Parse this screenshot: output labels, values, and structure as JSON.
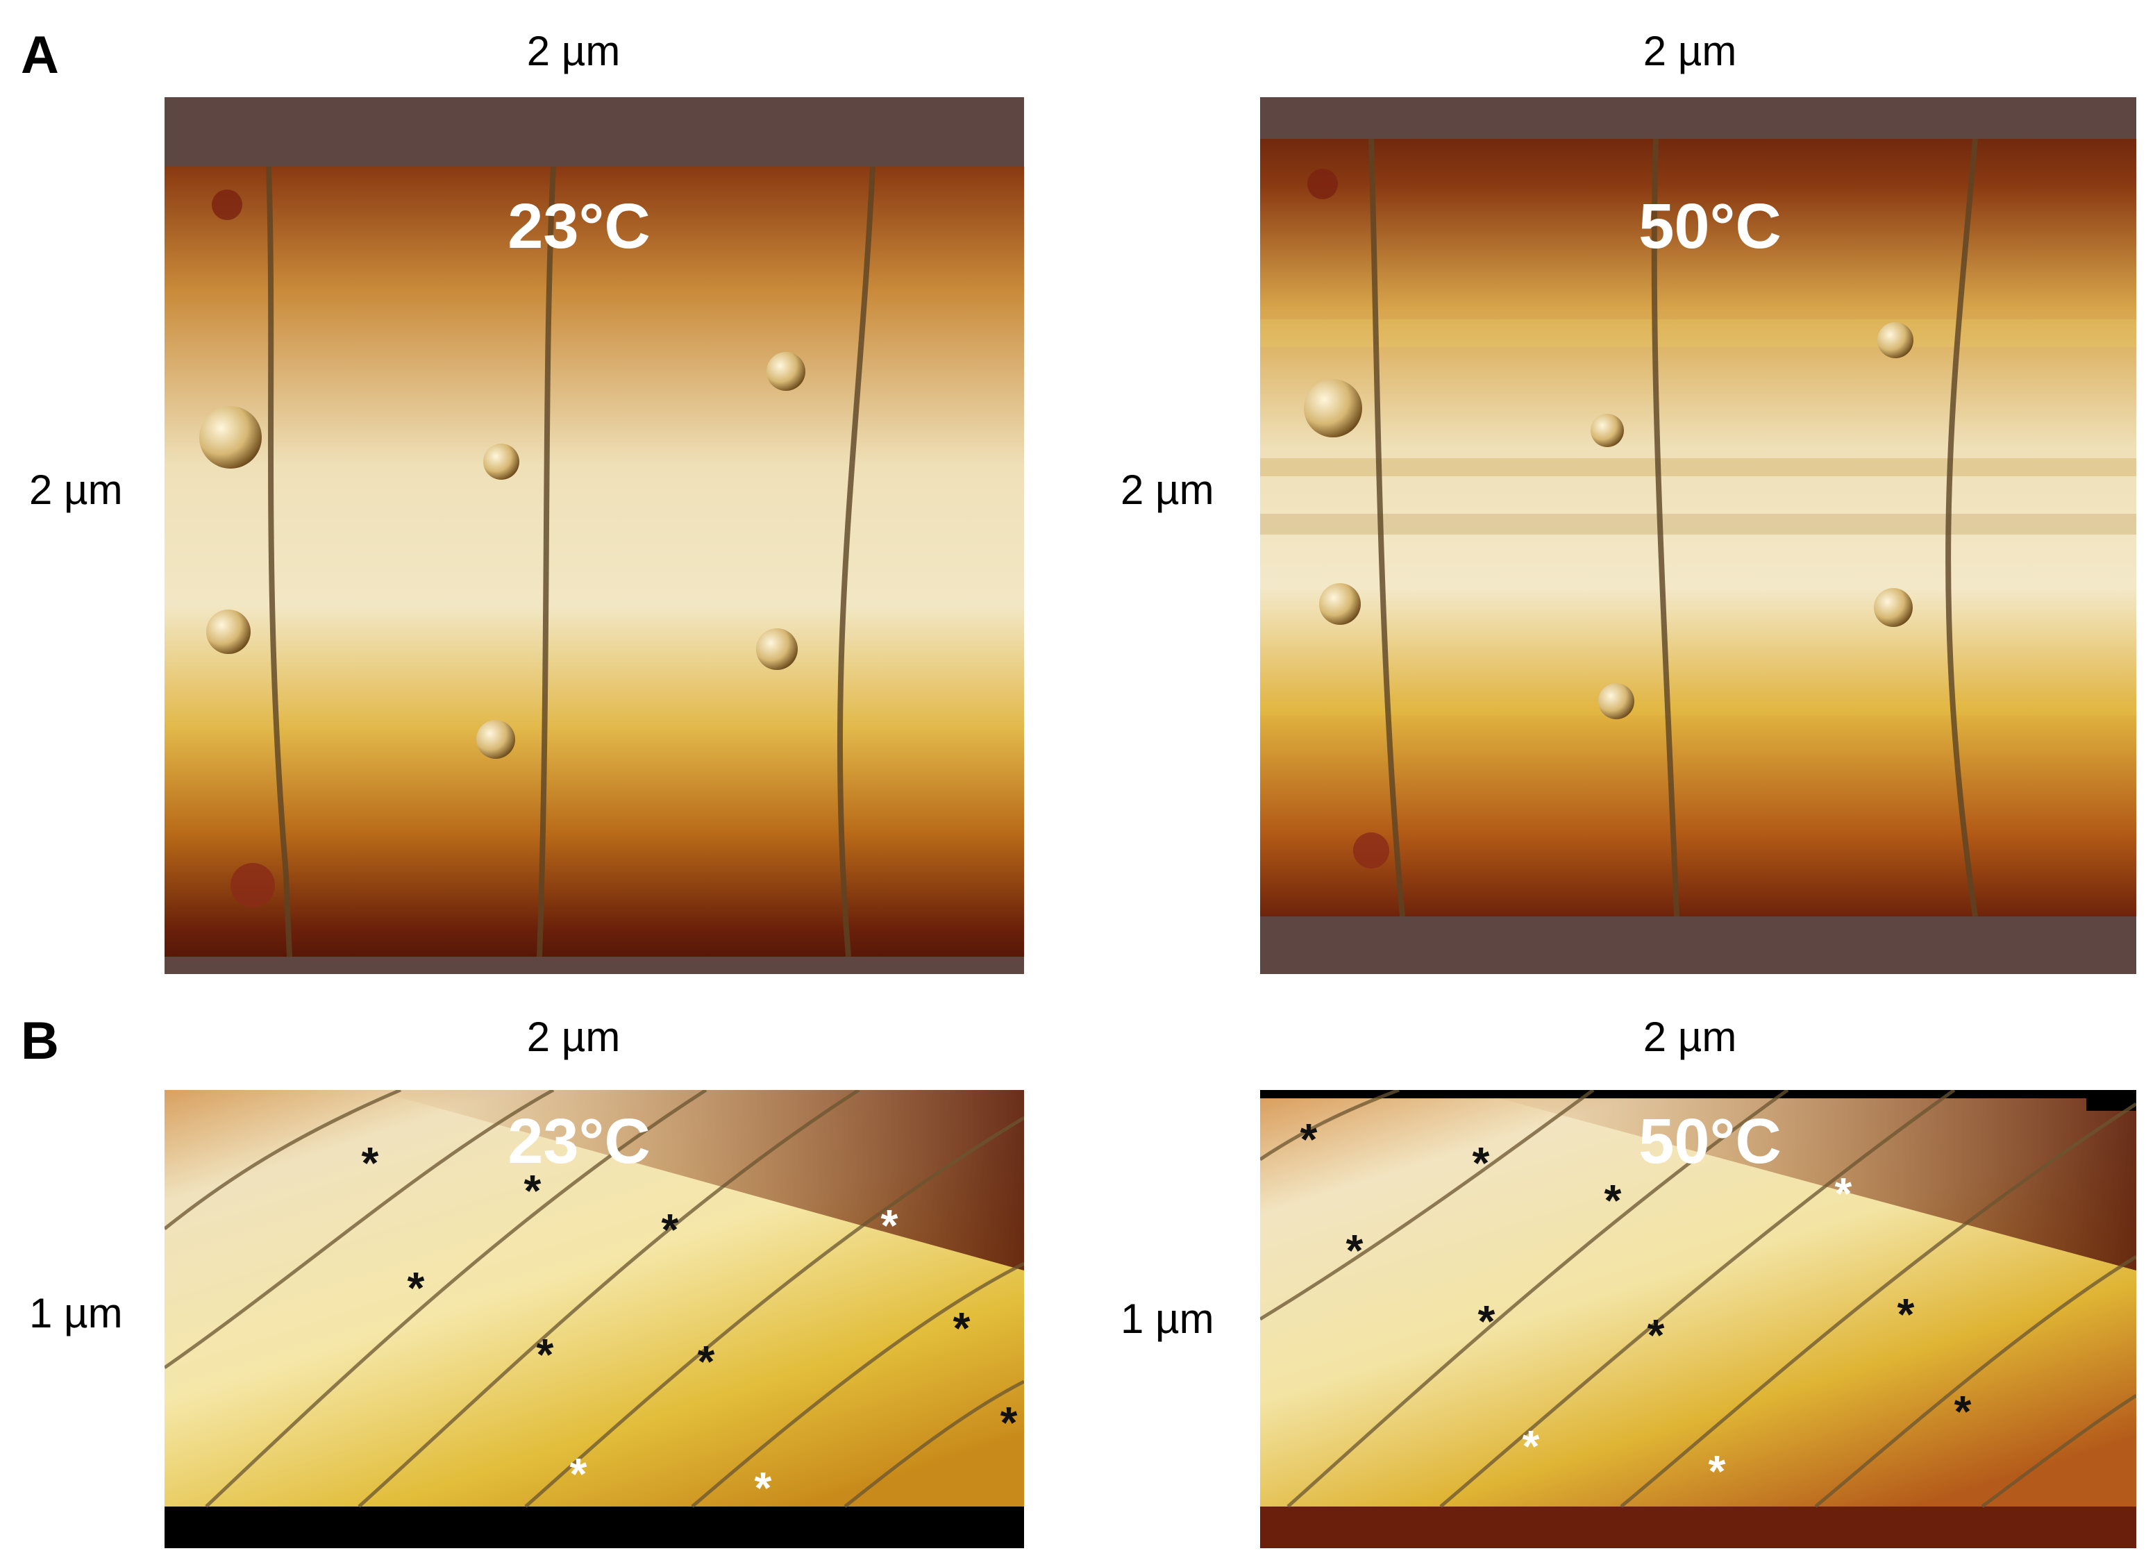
{
  "panels": {
    "A": {
      "letter": "A",
      "left": {
        "scale_top": "2 µm",
        "scale_side": "2 µm",
        "temperature": "23°C"
      },
      "right": {
        "scale_top": "2 µm",
        "scale_side": "2 µm",
        "temperature": "50°C"
      }
    },
    "B": {
      "letter": "B",
      "left": {
        "scale_top": "2 µm",
        "scale_side": "1 µm",
        "temperature": "23°C"
      },
      "right": {
        "scale_top": "2 µm",
        "scale_side": "1 µm",
        "temperature": "50°C"
      }
    }
  },
  "markers": {
    "symbol": "*",
    "dark_color": "#111111",
    "light_color": "#ffffff"
  },
  "colors": {
    "surface_light": "#f2e7c4",
    "surface_mid": "#d9ae38",
    "surface_dark": "#5a1a0a",
    "background_rough": "#5e4642"
  }
}
